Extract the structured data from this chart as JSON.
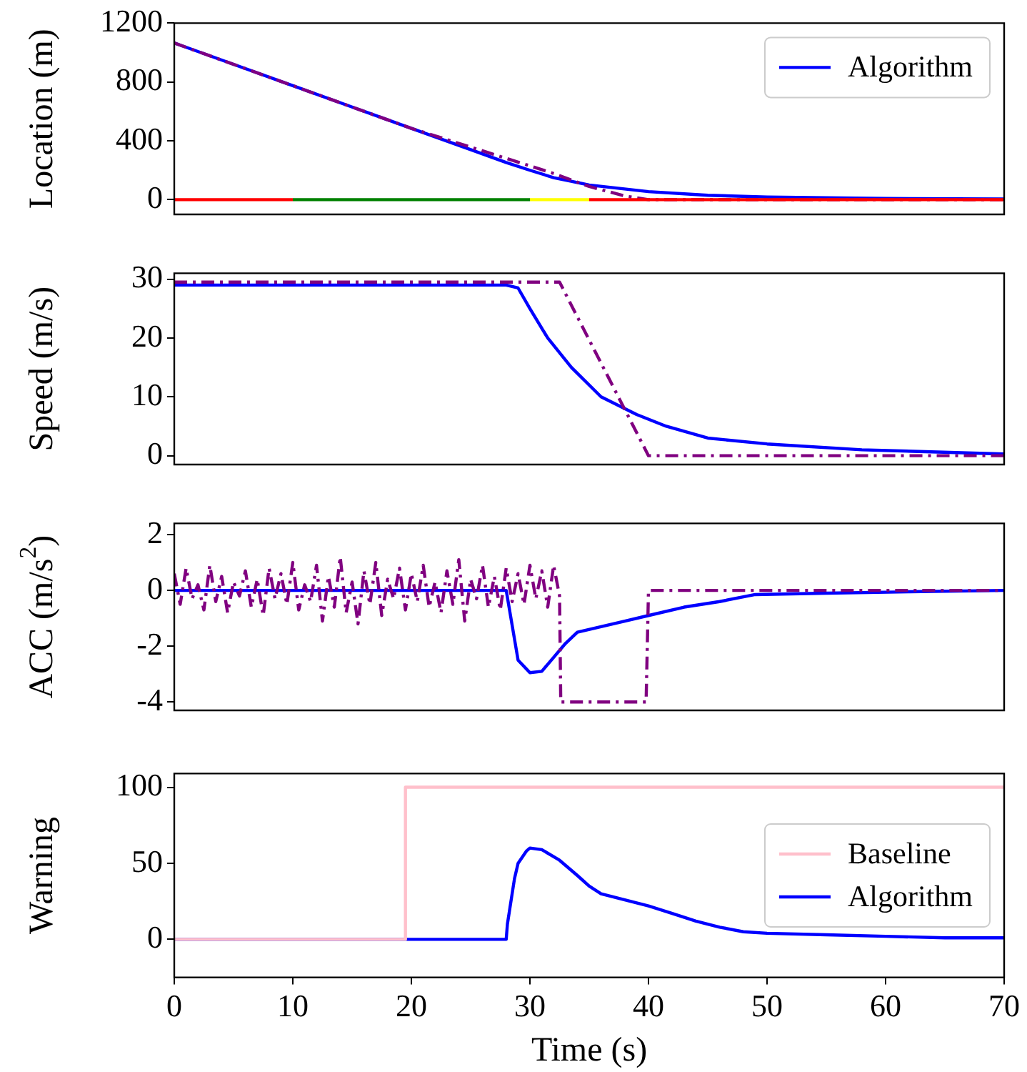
{
  "chart_data": [
    {
      "type": "line",
      "ylabel": "Location (m)",
      "xlim": [
        0,
        70
      ],
      "ylim": [
        -100,
        1200
      ],
      "yticks": [
        0,
        400,
        800,
        1200
      ],
      "tick_labels": "y",
      "grid": false,
      "legend": "top right",
      "series": [
        {
          "color": "#ff0000",
          "x": [
            0,
            10
          ],
          "values": [
            0,
            0
          ]
        },
        {
          "color": "#008000",
          "x": [
            10,
            30
          ],
          "values": [
            0,
            0
          ]
        },
        {
          "color": "#ffff00",
          "x": [
            30,
            35
          ],
          "values": [
            0,
            0
          ]
        },
        {
          "color": "#ff0000",
          "x": [
            35,
            70
          ],
          "values": [
            0,
            0
          ]
        },
        {
          "color": "#800080",
          "line_style": "dashed",
          "x": [
            0,
            10,
            20,
            30,
            32,
            35,
            38,
            40,
            70
          ],
          "values": [
            1065,
            775,
            485,
            230,
            178,
            90,
            25,
            0,
            0
          ]
        },
        {
          "name": "Algorithm",
          "color": "#0000ff",
          "x": [
            0,
            5,
            10,
            15,
            20,
            25,
            28,
            30,
            32,
            35,
            40,
            45,
            50,
            60,
            70
          ],
          "values": [
            1065,
            920,
            775,
            630,
            485,
            340,
            253,
            200,
            150,
            100,
            55,
            30,
            18,
            8,
            5
          ]
        }
      ]
    },
    {
      "type": "line",
      "ylabel": "Speed (m/s)",
      "xlim": [
        0,
        70
      ],
      "ylim": [
        -1.5,
        31
      ],
      "yticks": [
        0,
        10,
        20,
        30
      ],
      "tick_labels": "y",
      "grid": false,
      "series": [
        {
          "color": "#800080",
          "line_style": "dashed",
          "x": [
            0,
            32.5,
            40,
            70
          ],
          "values": [
            29.5,
            29.5,
            0,
            0
          ]
        },
        {
          "color": "#0000ff",
          "x": [
            0,
            28,
            29,
            30,
            31.5,
            33.5,
            36,
            39,
            41.5,
            45,
            50,
            58,
            70
          ],
          "values": [
            29,
            29,
            28.5,
            25,
            20,
            15,
            10,
            7,
            5,
            3,
            2,
            1,
            0.3
          ]
        }
      ]
    },
    {
      "type": "line",
      "ylabel": "ACC (m/s$^{2}$)",
      "xlim": [
        0,
        70
      ],
      "ylim": [
        -4.3,
        2.4
      ],
      "yticks": [
        -4,
        -2,
        0,
        2
      ],
      "tick_labels": "y",
      "grid": false,
      "series": [
        {
          "color": "#800080",
          "line_style": "dashed",
          "x": [
            0,
            0.5,
            1,
            1.5,
            2,
            2.5,
            3,
            3.5,
            4,
            4.5,
            5,
            5.5,
            6,
            6.5,
            7,
            7.5,
            8,
            8.5,
            9,
            9.5,
            10,
            10.5,
            11,
            11.5,
            12,
            12.5,
            13,
            13.5,
            14,
            14.5,
            15,
            15.5,
            16,
            16.5,
            17,
            17.5,
            18,
            18.5,
            19,
            19.5,
            20,
            20.5,
            21,
            21.5,
            22,
            22.5,
            23,
            23.5,
            24,
            24.5,
            25,
            25.5,
            26,
            26.5,
            27,
            27.5,
            28,
            28.5,
            29,
            29.5,
            30,
            30.5,
            31,
            31.5,
            32,
            32.5,
            32.6,
            39.8,
            40,
            70
          ],
          "values": [
            0.6,
            -0.5,
            0.8,
            -0.3,
            0.2,
            -0.7,
            0.9,
            -0.4,
            0.5,
            -0.8,
            0.3,
            -0.2,
            0.7,
            -0.6,
            0.4,
            -0.9,
            0.8,
            -0.3,
            0.6,
            -0.5,
            1.0,
            -0.7,
            0.2,
            -0.4,
            0.9,
            -1.1,
            0.5,
            -0.6,
            1.2,
            -0.8,
            0.3,
            -1.2,
            0.7,
            -0.5,
            1.0,
            -0.9,
            0.4,
            -0.3,
            0.8,
            -0.7,
            0.6,
            -0.4,
            0.9,
            -0.6,
            0.3,
            -0.8,
            0.7,
            -0.5,
            1.1,
            -1.1,
            0.4,
            -0.3,
            0.9,
            -0.6,
            0.5,
            -0.7,
            0.8,
            -0.4,
            0.6,
            -0.5,
            0.9,
            -0.3,
            0.7,
            -0.6,
            0.9,
            -0.2,
            -4,
            -4,
            0,
            0
          ]
        },
        {
          "color": "#0000ff",
          "x": [
            0,
            28,
            29,
            30,
            31,
            32,
            33,
            34,
            36,
            38,
            40,
            43,
            46,
            49,
            55,
            62,
            70
          ],
          "values": [
            0,
            0,
            -2.5,
            -2.95,
            -2.9,
            -2.4,
            -1.9,
            -1.5,
            -1.3,
            -1.1,
            -0.9,
            -0.6,
            -0.4,
            -0.15,
            -0.1,
            -0.05,
            0
          ]
        }
      ]
    },
    {
      "type": "line",
      "ylabel": "Warning",
      "xlabel": "Time (s)",
      "xlim": [
        0,
        70
      ],
      "xticks": [
        0,
        10,
        20,
        30,
        40,
        50,
        60,
        70
      ],
      "ylim": [
        -25,
        109
      ],
      "yticks": [
        0,
        50,
        100
      ],
      "grid": false,
      "legend": "right",
      "series": [
        {
          "name": "Baseline",
          "color": "#ffc0cb",
          "x": [
            0,
            19.5,
            19.5,
            70
          ],
          "values": [
            0,
            0,
            100,
            100
          ]
        },
        {
          "name": "Algorithm",
          "color": "#0000ff",
          "x": [
            0,
            28,
            28.1,
            28.7,
            29,
            29.7,
            30,
            31,
            32.5,
            34,
            35,
            36,
            38,
            40,
            42,
            44,
            46,
            48,
            50,
            55,
            60,
            65,
            70
          ],
          "values": [
            0,
            0,
            10,
            40,
            50,
            58,
            60,
            59,
            52,
            42,
            35,
            30,
            26,
            22,
            17,
            12,
            8,
            5,
            4,
            3,
            2,
            1,
            1
          ]
        }
      ]
    }
  ]
}
